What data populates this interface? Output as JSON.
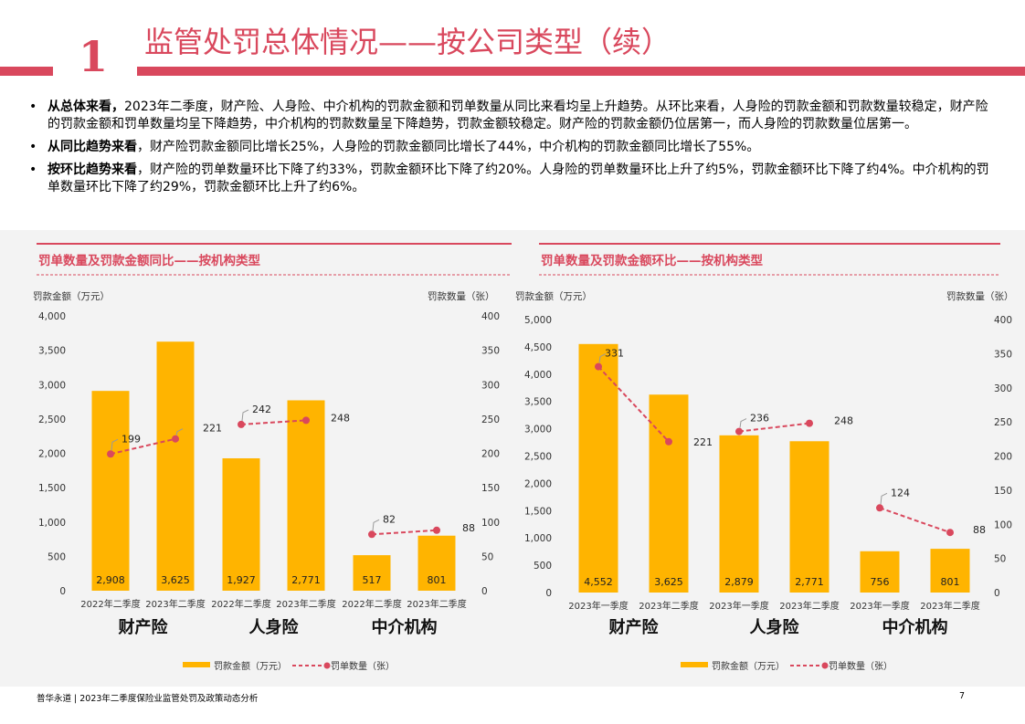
{
  "header": {
    "number": "1",
    "title": "监管处罚总体情况——按公司类型（续）"
  },
  "bullets": [
    {
      "bold": "从总体来看，",
      "text": "2023年二季度，财产险、人身险、中介机构的罚款金额和罚单数量从同比来看均呈上升趋势。从环比来看，人身险的罚款金额和罚款数量较稳定，财产险的罚款金额和罚单数量均呈下降趋势，中介机构的罚款数量呈下降趋势，罚款金额较稳定。财产险的罚款金额仍位居第一，而人身险的罚款数量位居第一。"
    },
    {
      "bold": "从同比趋势来看",
      "text": "，财产险罚款金额同比增长25%，人身险的罚款金额同比增长了44%，中介机构的罚款金额同比增长了55%。"
    },
    {
      "bold": "按环比趋势来看",
      "text": "，财产险的罚单数量环比下降了约33%，罚款金额环比下降了约20%。人身险的罚单数量环比上升了约5%，罚款金额环比下降了约4%。中介机构的罚单数量环比下降了约29%，罚款金额环比上升了约6%。"
    }
  ],
  "footer": {
    "text": "普华永道 | 2023年二季度保险业监管处罚及政策动态分析",
    "page": "7"
  },
  "colors": {
    "accent": "#d9485d",
    "bar": "#ffb400",
    "line": "#d9485d"
  },
  "chart_data": [
    {
      "type": "bar",
      "title": "罚单数量及罚款金额同比——按机构类型",
      "ylabel": "罚款金额（万元）",
      "y2label": "罚款数量（张）",
      "ylim": [
        0,
        4000
      ],
      "y2lim": [
        0,
        400
      ],
      "yticks": [
        "0",
        "500",
        "1,000",
        "1,500",
        "2,000",
        "2,500",
        "3,000",
        "3,500",
        "4,000"
      ],
      "y2ticks": [
        "0",
        "50",
        "100",
        "150",
        "200",
        "250",
        "300",
        "350",
        "400"
      ],
      "categories": [
        "2022年二季度",
        "2023年二季度",
        "2022年二季度",
        "2023年二季度",
        "2022年二季度",
        "2023年二季度"
      ],
      "groups": [
        "财产险",
        "人身险",
        "中介机构"
      ],
      "series": [
        {
          "name": "罚款金额（万元）",
          "type": "bar",
          "values": [
            2908,
            3625,
            1927,
            2771,
            517,
            801
          ],
          "labels": [
            "2,908",
            "3,625",
            "1,927",
            "2,771",
            "517",
            "801"
          ]
        },
        {
          "name": "罚单数量（张）",
          "type": "line",
          "values": [
            199,
            221,
            242,
            248,
            82,
            88
          ],
          "labels": [
            "199",
            "221",
            "242",
            "248",
            "82",
            "88"
          ]
        }
      ],
      "legend": "bottom"
    },
    {
      "type": "bar",
      "title": "罚单数量及罚款金额环比——按机构类型",
      "ylabel": "罚款金额（万元）",
      "y2label": "罚款数量（张）",
      "ylim": [
        0,
        5000
      ],
      "y2lim": [
        0,
        400
      ],
      "yticks": [
        "0",
        "500",
        "1,000",
        "1,500",
        "2,000",
        "2,500",
        "3,000",
        "3,500",
        "4,000",
        "4,500",
        "5,000"
      ],
      "y2ticks": [
        "0",
        "50",
        "100",
        "150",
        "200",
        "250",
        "300",
        "350",
        "400"
      ],
      "categories": [
        "2023年一季度",
        "2023年二季度",
        "2023年一季度",
        "2023年二季度",
        "2023年一季度",
        "2023年二季度"
      ],
      "groups": [
        "财产险",
        "人身险",
        "中介机构"
      ],
      "series": [
        {
          "name": "罚款金额（万元）",
          "type": "bar",
          "values": [
            4552,
            3625,
            2879,
            2771,
            756,
            801
          ],
          "labels": [
            "4,552",
            "3,625",
            "2,879",
            "2,771",
            "756",
            "801"
          ]
        },
        {
          "name": "罚单数量（张）",
          "type": "line",
          "values": [
            331,
            221,
            236,
            248,
            124,
            88
          ],
          "labels": [
            "331",
            "221",
            "236",
            "248",
            "124",
            "88"
          ]
        }
      ],
      "legend": "bottom"
    }
  ]
}
